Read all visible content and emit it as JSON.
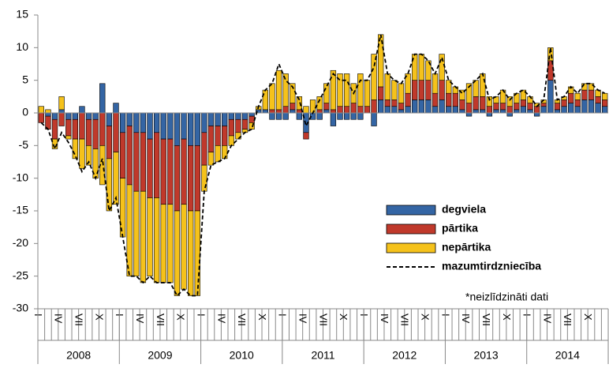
{
  "chart_data": {
    "type": "bar",
    "stacked": true,
    "categories": [
      "I",
      null,
      null,
      "IV",
      null,
      null,
      "VII",
      null,
      null,
      "X",
      null,
      null,
      "I",
      null,
      null,
      "IV",
      null,
      null,
      "VII",
      null,
      null,
      "X",
      null,
      null,
      "I",
      null,
      null,
      "IV",
      null,
      null,
      "VII",
      null,
      null,
      "X",
      null,
      null,
      "I",
      null,
      null,
      "IV",
      null,
      null,
      "VII",
      null,
      null,
      "X",
      null,
      null,
      "I",
      null,
      null,
      "IV",
      null,
      null,
      "VII",
      null,
      null,
      "X",
      null,
      null,
      "I",
      null,
      null,
      "IV",
      null,
      null,
      "VII",
      null,
      null,
      "X",
      null,
      null,
      "I",
      null,
      null,
      "IV",
      null,
      null,
      "VII",
      null,
      null,
      "X",
      null,
      null
    ],
    "years": [
      "2008",
      "2009",
      "2010",
      "2011",
      "2012",
      "2013",
      "2014"
    ],
    "series": [
      {
        "name": "degviela",
        "color": "#3465a4",
        "values": [
          0,
          -0.5,
          -1,
          0.5,
          -1,
          -1,
          1,
          -1,
          -1,
          4.5,
          -2,
          1.5,
          -3,
          -2,
          -3,
          -3,
          -4,
          -3,
          -4,
          -4,
          -5,
          -4,
          -5,
          -5,
          -3,
          -2,
          -2,
          -2,
          -1,
          -1,
          -1,
          -0.5,
          0.5,
          0.5,
          -1,
          -1,
          -1,
          0.5,
          -1,
          -3,
          -1,
          -1,
          0.5,
          -2,
          -1,
          -1,
          -1,
          -1,
          0,
          -2,
          2,
          1,
          1,
          0.5,
          1,
          2,
          2,
          2,
          1,
          2,
          1,
          1,
          0.5,
          -0.5,
          0.5,
          0.5,
          -0.5,
          0.5,
          0.5,
          -0.5,
          0.5,
          1,
          0.5,
          -0.5,
          1,
          5,
          0.5,
          1,
          1.5,
          1,
          2,
          2,
          1.5,
          1
        ]
      },
      {
        "name": "pārtika",
        "color": "#c0392b",
        "values": [
          -1.5,
          -2,
          -3,
          -2,
          -2.5,
          -3,
          -4,
          -4,
          -4.5,
          -5,
          -5,
          -6,
          -7,
          -9,
          -9,
          -9,
          -9,
          -10,
          -10,
          -10,
          -10,
          -10,
          -10,
          -10,
          -5,
          -4,
          -3,
          -3,
          -2.5,
          -2,
          -1.5,
          -1,
          0,
          0,
          0.5,
          0.5,
          1,
          1,
          0.5,
          -1,
          0,
          0.5,
          1,
          0.5,
          1,
          1,
          1.5,
          1,
          1,
          2,
          2,
          1,
          1,
          1,
          2,
          3,
          3,
          3,
          2,
          3,
          2,
          2,
          1.5,
          1.5,
          2,
          2,
          1,
          1,
          1,
          1,
          1,
          1,
          1,
          1,
          0.5,
          3,
          1,
          1,
          1.5,
          1,
          1.5,
          1.5,
          1,
          1
        ]
      },
      {
        "name": "nepārtika",
        "color": "#f5c21b",
        "values": [
          1,
          0.5,
          -1.5,
          2,
          -0.5,
          -3,
          -4.5,
          -3,
          -4.5,
          -6,
          -8,
          -8,
          -9,
          -14,
          -13,
          -14,
          -12,
          -13,
          -12,
          -12,
          -13,
          -13,
          -13,
          -13,
          -4,
          -2,
          -2.5,
          -2,
          -1.5,
          -1,
          -0.5,
          -1,
          0.5,
          3,
          4,
          6,
          5,
          3,
          2,
          1,
          2,
          2,
          3,
          6,
          5,
          5,
          3,
          5,
          4,
          7,
          8,
          4,
          3,
          3,
          3,
          4,
          4,
          3,
          3,
          4,
          2,
          1,
          1.5,
          3,
          2.5,
          3.5,
          1.5,
          1,
          2,
          1.5,
          1.5,
          1.5,
          1,
          0.5,
          0.5,
          2,
          0.5,
          0.5,
          1,
          1,
          1,
          1,
          1,
          1
        ]
      },
      {
        "name": "mazumtirdzniecība",
        "type": "line",
        "color": "#000000",
        "dashed": true,
        "values": [
          -1.5,
          -2.5,
          -5.5,
          -3,
          -4.5,
          -6.5,
          -9,
          -7.5,
          -10,
          -7,
          -15,
          -13,
          -19,
          -25,
          -25,
          -26,
          -25,
          -26,
          -26,
          -26,
          -28,
          -27,
          -28,
          -28,
          -12,
          -8,
          -7.5,
          -7,
          -5,
          -4,
          -3,
          -2.5,
          1,
          3.5,
          4.5,
          7.5,
          5,
          4,
          2,
          -2,
          0,
          2,
          4,
          6,
          5,
          5,
          3,
          5,
          5,
          7,
          12,
          6,
          5,
          4.5,
          6,
          9,
          9,
          8,
          6,
          8.5,
          5,
          4,
          3,
          4,
          5,
          6,
          2,
          2.5,
          3.5,
          2,
          3,
          3.5,
          2.5,
          1,
          2,
          10,
          2,
          2.5,
          4,
          3,
          4.5,
          4.5,
          3.5,
          3
        ]
      }
    ],
    "ylim": [
      -30,
      15
    ],
    "yticks": [
      -30,
      -25,
      -20,
      -15,
      -10,
      -5,
      0,
      5,
      10,
      15
    ],
    "grid": false,
    "annotation": "*neizlīdzināti dati"
  }
}
